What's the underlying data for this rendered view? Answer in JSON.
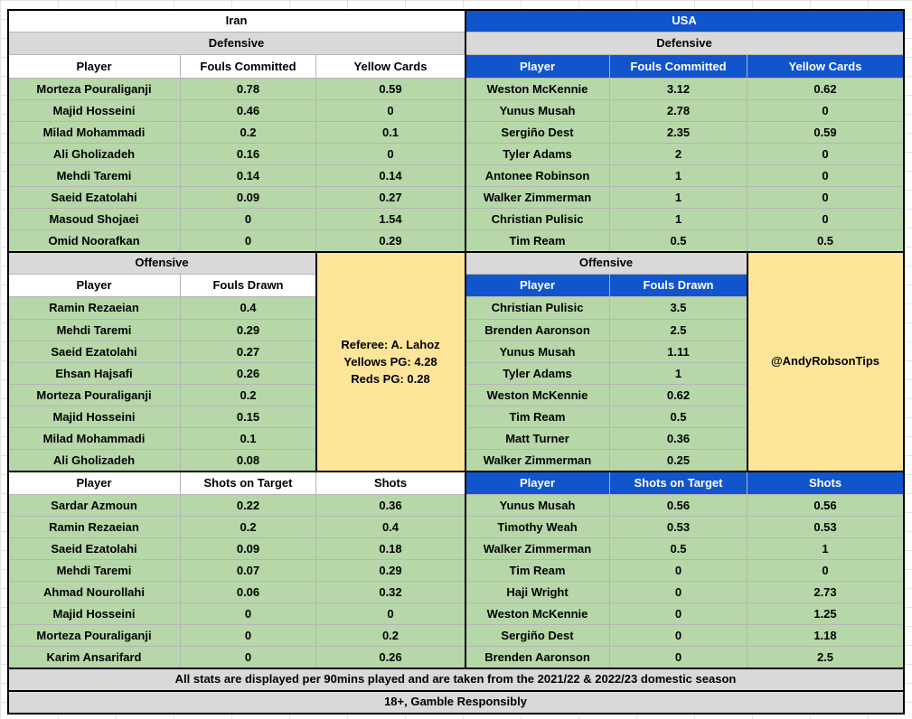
{
  "iran": {
    "title": "Iran",
    "defensive": {
      "title": "Defensive",
      "headers": [
        "Player",
        "Fouls Committed",
        "Yellow Cards"
      ],
      "rows": [
        [
          "Morteza Pouraliganji",
          "0.78",
          "0.59"
        ],
        [
          "Majid Hosseini",
          "0.46",
          "0"
        ],
        [
          "Milad Mohammadi",
          "0.2",
          "0.1"
        ],
        [
          "Ali Gholizadeh",
          "0.16",
          "0"
        ],
        [
          "Mehdi Taremi",
          "0.14",
          "0.14"
        ],
        [
          "Saeid Ezatolahi",
          "0.09",
          "0.27"
        ],
        [
          "Masoud Shojaei",
          "0",
          "1.54"
        ],
        [
          "Omid Noorafkan",
          "0",
          "0.29"
        ]
      ]
    },
    "offensive": {
      "title": "Offensive",
      "headers": [
        "Player",
        "Fouls Drawn"
      ],
      "rows": [
        [
          "Ramin Rezaeian",
          "0.4"
        ],
        [
          "Mehdi Taremi",
          "0.29"
        ],
        [
          "Saeid Ezatolahi",
          "0.27"
        ],
        [
          "Ehsan Hajsafi",
          "0.26"
        ],
        [
          "Morteza Pouraliganji",
          "0.2"
        ],
        [
          "Majid Hosseini",
          "0.15"
        ],
        [
          "Milad Mohammadi",
          "0.1"
        ],
        [
          "Ali Gholizadeh",
          "0.08"
        ]
      ]
    },
    "shots": {
      "headers": [
        "Player",
        "Shots on Target",
        "Shots"
      ],
      "rows": [
        [
          "Sardar Azmoun",
          "0.22",
          "0.36"
        ],
        [
          "Ramin Rezaeian",
          "0.2",
          "0.4"
        ],
        [
          "Saeid Ezatolahi",
          "0.09",
          "0.18"
        ],
        [
          "Mehdi Taremi",
          "0.07",
          "0.29"
        ],
        [
          "Ahmad Nourollahi",
          "0.06",
          "0.32"
        ],
        [
          "Majid Hosseini",
          "0",
          "0"
        ],
        [
          "Morteza Pouraliganji",
          "0",
          "0.2"
        ],
        [
          "Karim Ansarifard",
          "0",
          "0.26"
        ]
      ]
    }
  },
  "usa": {
    "title": "USA",
    "defensive": {
      "title": "Defensive",
      "headers": [
        "Player",
        "Fouls Committed",
        "Yellow Cards"
      ],
      "rows": [
        [
          "Weston McKennie",
          "3.12",
          "0.62"
        ],
        [
          "Yunus Musah",
          "2.78",
          "0"
        ],
        [
          "Sergiño Dest",
          "2.35",
          "0.59"
        ],
        [
          "Tyler Adams",
          "2",
          "0"
        ],
        [
          "Antonee Robinson",
          "1",
          "0"
        ],
        [
          "Walker Zimmerman",
          "1",
          "0"
        ],
        [
          "Christian Pulisic",
          "1",
          "0"
        ],
        [
          "Tim Ream",
          "0.5",
          "0.5"
        ]
      ]
    },
    "offensive": {
      "title": "Offensive",
      "headers": [
        "Player",
        "Fouls Drawn"
      ],
      "rows": [
        [
          "Christian Pulisic",
          "3.5"
        ],
        [
          "Brenden Aaronson",
          "2.5"
        ],
        [
          "Yunus Musah",
          "1.11"
        ],
        [
          "Tyler Adams",
          "1"
        ],
        [
          "Weston McKennie",
          "0.62"
        ],
        [
          "Tim Ream",
          "0.5"
        ],
        [
          "Matt Turner",
          "0.36"
        ],
        [
          "Walker Zimmerman",
          "0.25"
        ]
      ]
    },
    "shots": {
      "headers": [
        "Player",
        "Shots on Target",
        "Shots"
      ],
      "rows": [
        [
          "Yunus Musah",
          "0.56",
          "0.56"
        ],
        [
          "Timothy Weah",
          "0.53",
          "0.53"
        ],
        [
          "Walker Zimmerman",
          "0.5",
          "1"
        ],
        [
          "Tim Ream",
          "0",
          "0"
        ],
        [
          "Haji Wright",
          "0",
          "2.73"
        ],
        [
          "Weston McKennie",
          "0",
          "1.25"
        ],
        [
          "Sergiño Dest",
          "0",
          "1.18"
        ],
        [
          "Brenden Aaronson",
          "0",
          "2.5"
        ]
      ]
    }
  },
  "referee": {
    "name": "Referee: A. Lahoz",
    "yellows": "Yellows PG: 4.28",
    "reds": "Reds PG: 0.28"
  },
  "handle": "@AndyRobsonTips",
  "footer": {
    "note": "All stats are displayed per 90mins played and are taken from the 2021/22 & 2022/23 domestic season",
    "disclaimer": "18+, Gamble Responsibly"
  },
  "colors": {
    "usa_header": "#1155cc",
    "data_rows": "#b6d7a8",
    "info_box": "#ffe599",
    "section_header": "#d9d9d9"
  }
}
